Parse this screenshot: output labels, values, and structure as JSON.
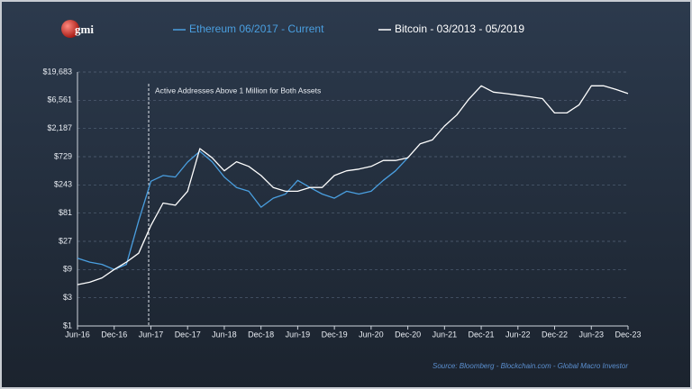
{
  "logo": "gmi",
  "source": "Source: Bloomberg - Blockchain.com - Global Macro Investor",
  "chart_data": {
    "type": "line",
    "annotation": "Active  Addresses Above 1 Million for Both Assets",
    "categories": [
      "Jun-16",
      null,
      null,
      "Dec-16",
      null,
      null,
      "Jun-17",
      null,
      null,
      "Dec-17",
      null,
      null,
      "Jun-18",
      null,
      null,
      "Dec-18",
      null,
      null,
      "Jun-19",
      null,
      null,
      "Dec-19",
      null,
      null,
      "Jun-20",
      null,
      null,
      "Dec-20",
      null,
      null,
      "Jun-21",
      null,
      null,
      "Dec-21",
      null,
      null,
      "Jun-22",
      null,
      null,
      "Dec-22",
      null,
      null,
      "Jun-23",
      null,
      null,
      "Dec-23"
    ],
    "series": [
      {
        "name": "Ethereum 06/2017 - Current",
        "color": "#4a9fe0",
        "values": [
          14,
          12,
          11,
          9,
          11,
          60,
          280,
          350,
          330,
          590,
          900,
          600,
          330,
          220,
          190,
          102,
          145,
          170,
          290,
          220,
          170,
          145,
          190,
          170,
          190,
          290,
          420,
          700,
          null,
          null,
          null,
          null,
          null,
          null,
          null,
          null,
          null,
          null,
          null,
          null,
          null,
          null,
          null,
          null,
          null,
          null
        ]
      },
      {
        "name": "Bitcoin - 03/2013 - 05/2019",
        "color": "#ffffff",
        "values": [
          5,
          5.5,
          6.5,
          9,
          12,
          17,
          50,
          120,
          110,
          190,
          1000,
          700,
          420,
          600,
          500,
          350,
          220,
          190,
          190,
          220,
          220,
          350,
          420,
          450,
          500,
          630,
          630,
          700,
          1200,
          1400,
          2400,
          3700,
          6900,
          11500,
          9000,
          8500,
          8000,
          7500,
          7000,
          4000,
          4000,
          5500,
          11500,
          11500,
          10000,
          8500
        ]
      }
    ],
    "log_scale": true,
    "ylim": [
      1,
      19683
    ],
    "yticks": [
      {
        "value": 1,
        "label": "$1"
      },
      {
        "value": 3,
        "label": "$3"
      },
      {
        "value": 9,
        "label": "$9"
      },
      {
        "value": 27,
        "label": "$27"
      },
      {
        "value": 81,
        "label": "$81"
      },
      {
        "value": 243,
        "label": "$243"
      },
      {
        "value": 729,
        "label": "$729"
      },
      {
        "value": 2187,
        "label": "$2,187"
      },
      {
        "value": 6561,
        "label": "$6,561"
      },
      {
        "value": 19683,
        "label": "$19,683"
      }
    ],
    "grid": true
  }
}
